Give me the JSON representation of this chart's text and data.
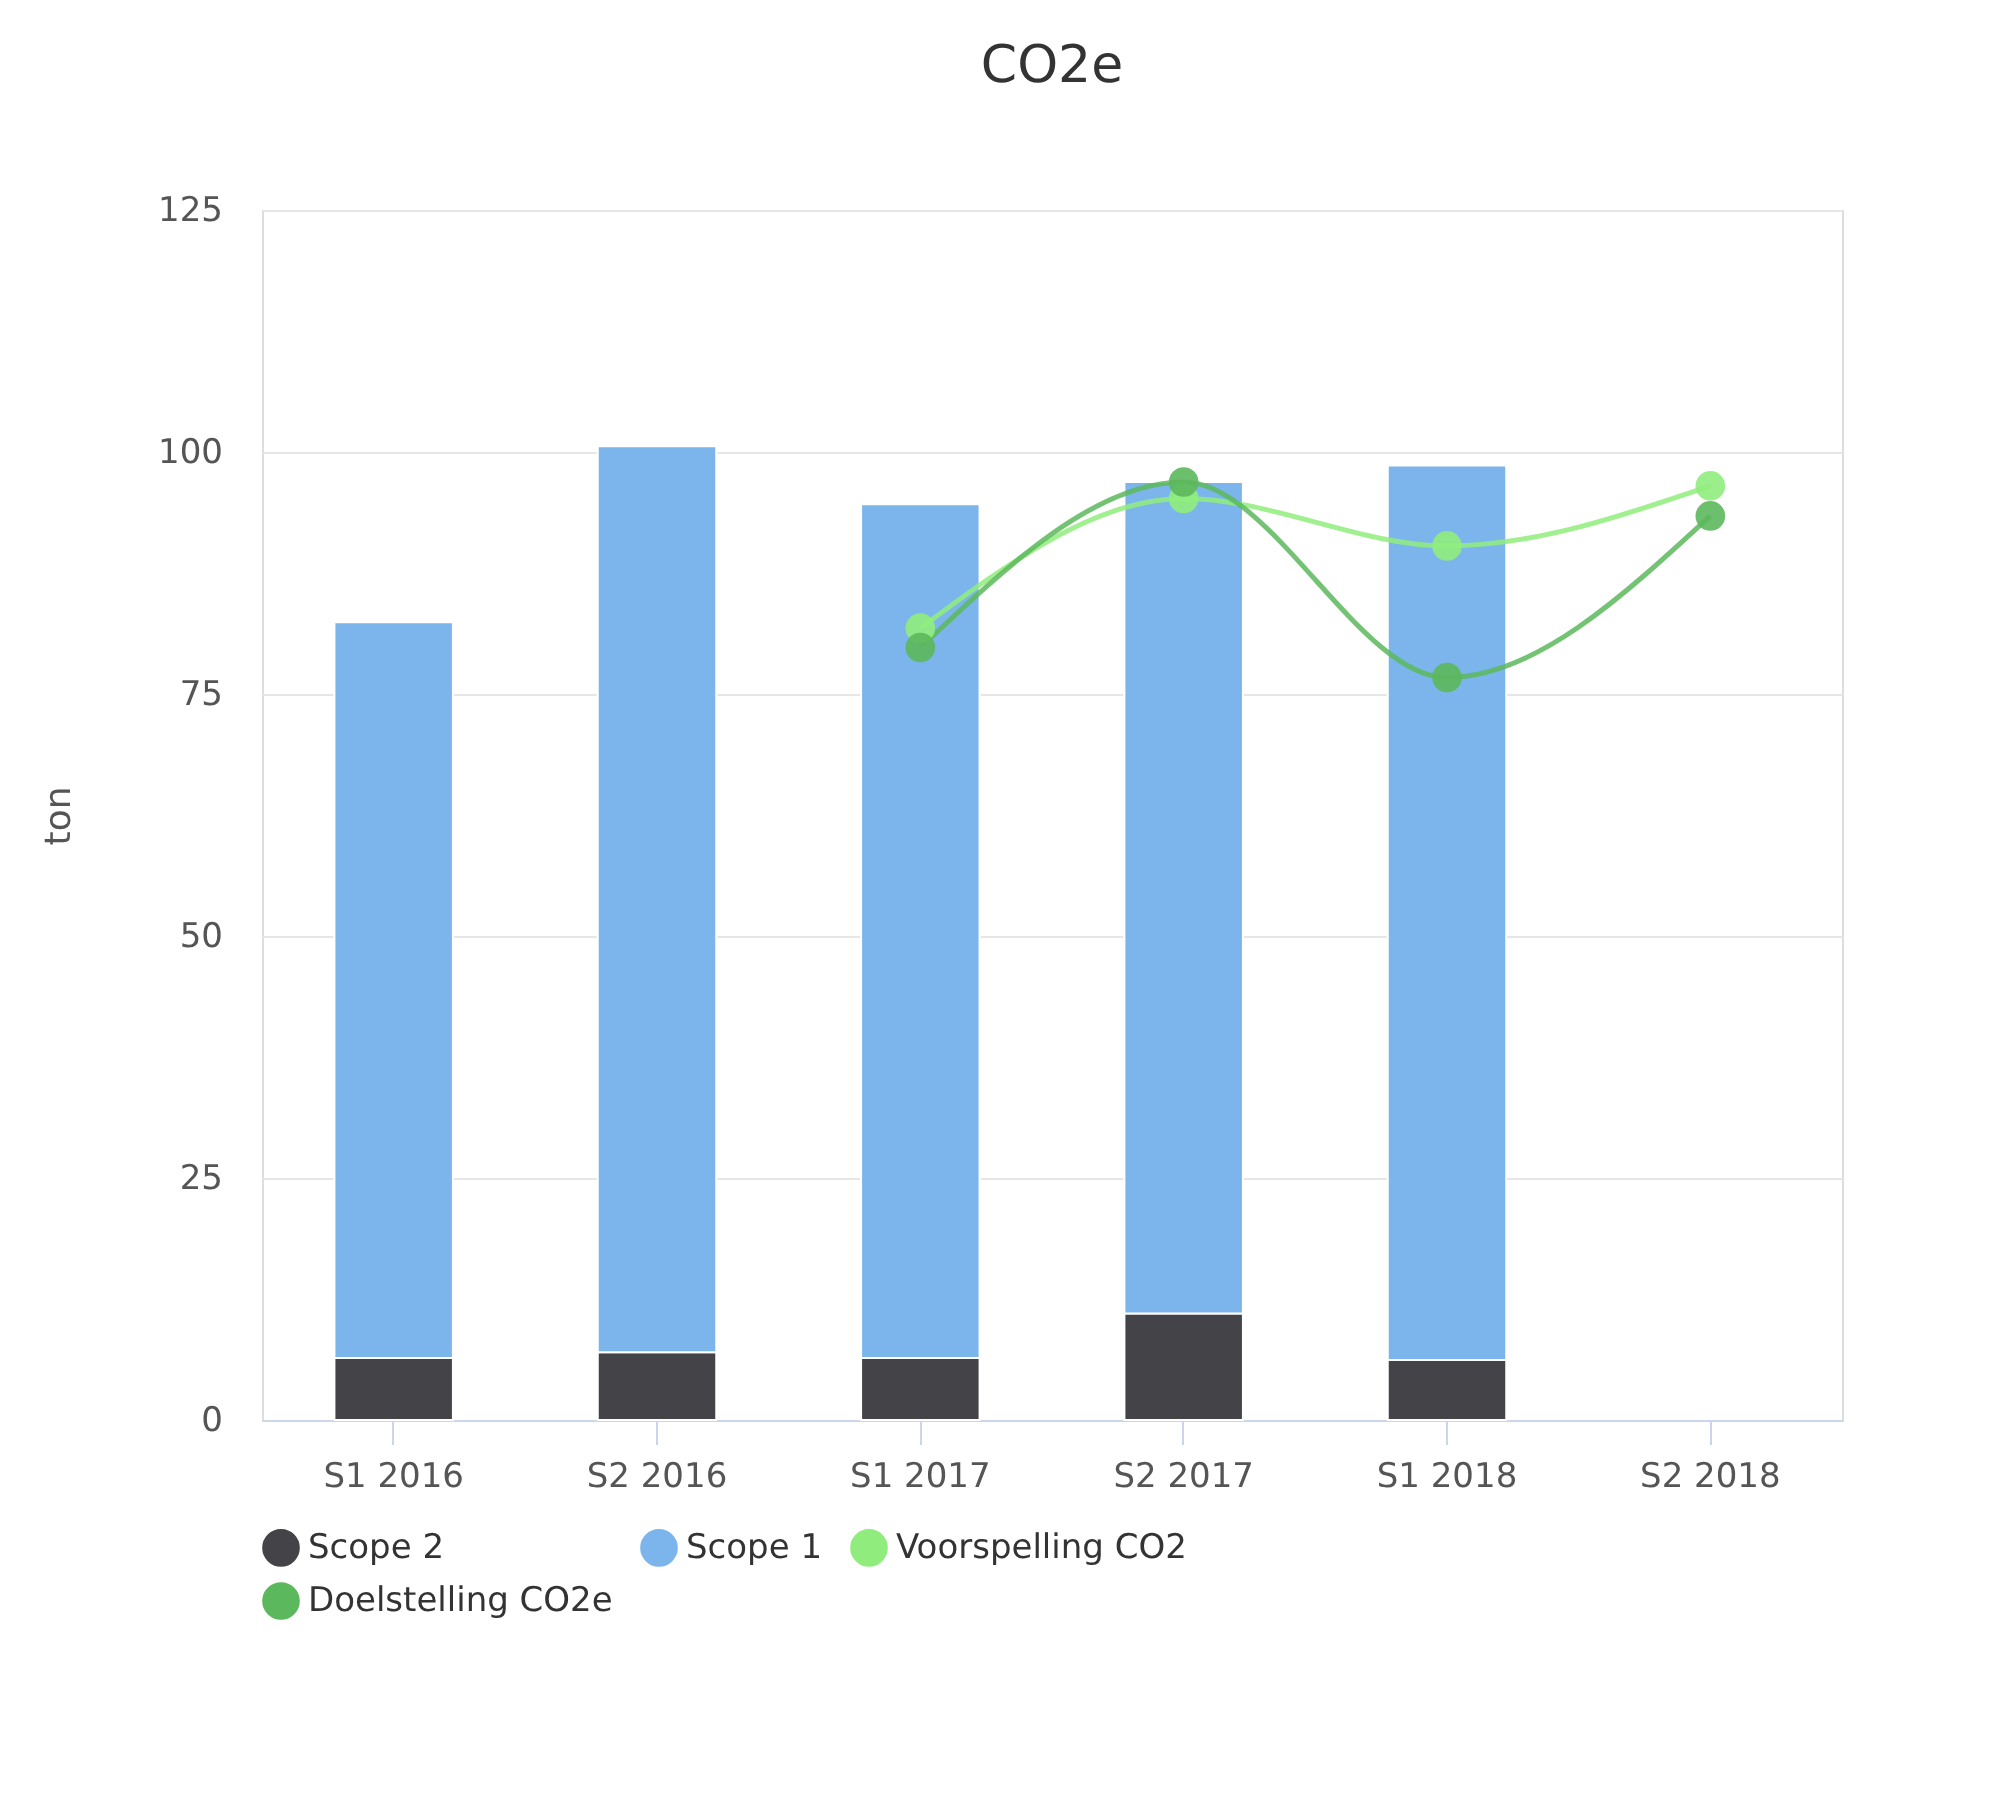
{
  "chart_data": {
    "type": "bar",
    "title": "CO2e",
    "ylabel": "ton",
    "stacked": true,
    "categories": [
      "S1 2016",
      "S2 2016",
      "S1 2017",
      "S2 2017",
      "S1 2018",
      "S2 2018"
    ],
    "series": [
      {
        "name": "Scope 2",
        "color": "#434348",
        "values": [
          6.4,
          7.0,
          6.4,
          11.0,
          6.2,
          null
        ]
      },
      {
        "name": "Scope 1",
        "color": "#7cb5ec",
        "values": [
          76.0,
          93.6,
          88.2,
          85.9,
          92.4,
          null
        ]
      },
      {
        "name": "Voorspelling CO2",
        "type": "line",
        "color": "#90ed7d",
        "values": [
          null,
          null,
          81.8,
          95.2,
          90.3,
          96.5
        ]
      },
      {
        "name": "Doelstelling CO2e",
        "type": "line",
        "color": "#5cb85c",
        "values": [
          null,
          null,
          79.8,
          96.9,
          76.7,
          93.4
        ]
      }
    ],
    "ylim": [
      0,
      125
    ],
    "yticks": [
      0,
      25,
      50,
      75,
      100,
      125
    ],
    "grid": "y",
    "legend": "bottom",
    "marker": "circle",
    "line_style": "solid"
  }
}
